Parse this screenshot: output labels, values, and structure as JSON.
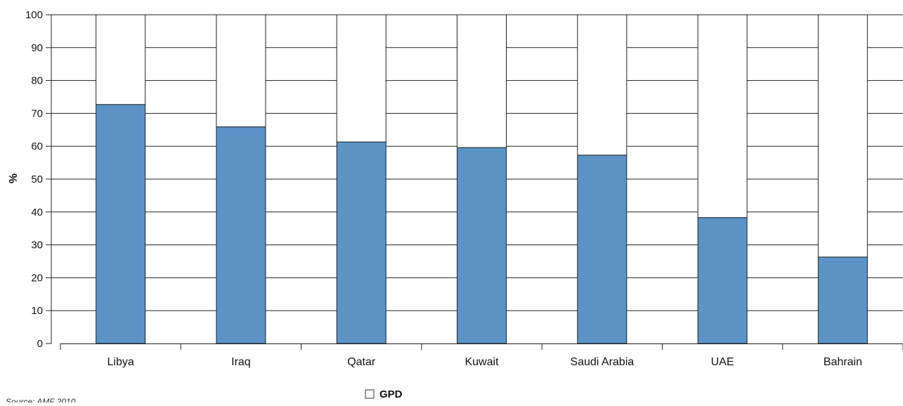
{
  "chart_data": {
    "type": "bar",
    "stacked": true,
    "categories": [
      "Libya",
      "Iraq",
      "Qatar",
      "Kuwait",
      "Saudi Arabia",
      "UAE",
      "Bahrain"
    ],
    "series": [
      {
        "values": [
          72.7,
          65.9,
          61.3,
          59.6,
          57.3,
          38.3,
          26.3
        ],
        "color": "#5b93c6"
      },
      {
        "name": "GPD",
        "values": [
          27.3,
          34.1,
          38.7,
          40.4,
          42.7,
          61.7,
          73.7
        ],
        "color": "#ffffff"
      }
    ],
    "ylabel": "%",
    "xlabel": "",
    "ylim": [
      0,
      100
    ],
    "yticks": [
      0,
      10,
      20,
      30,
      40,
      50,
      60,
      70,
      80,
      90,
      100
    ],
    "grid": true,
    "legend": {
      "position": "bottom-center",
      "entries": [
        "GPD"
      ]
    },
    "source": "Source: AMF 2010"
  }
}
